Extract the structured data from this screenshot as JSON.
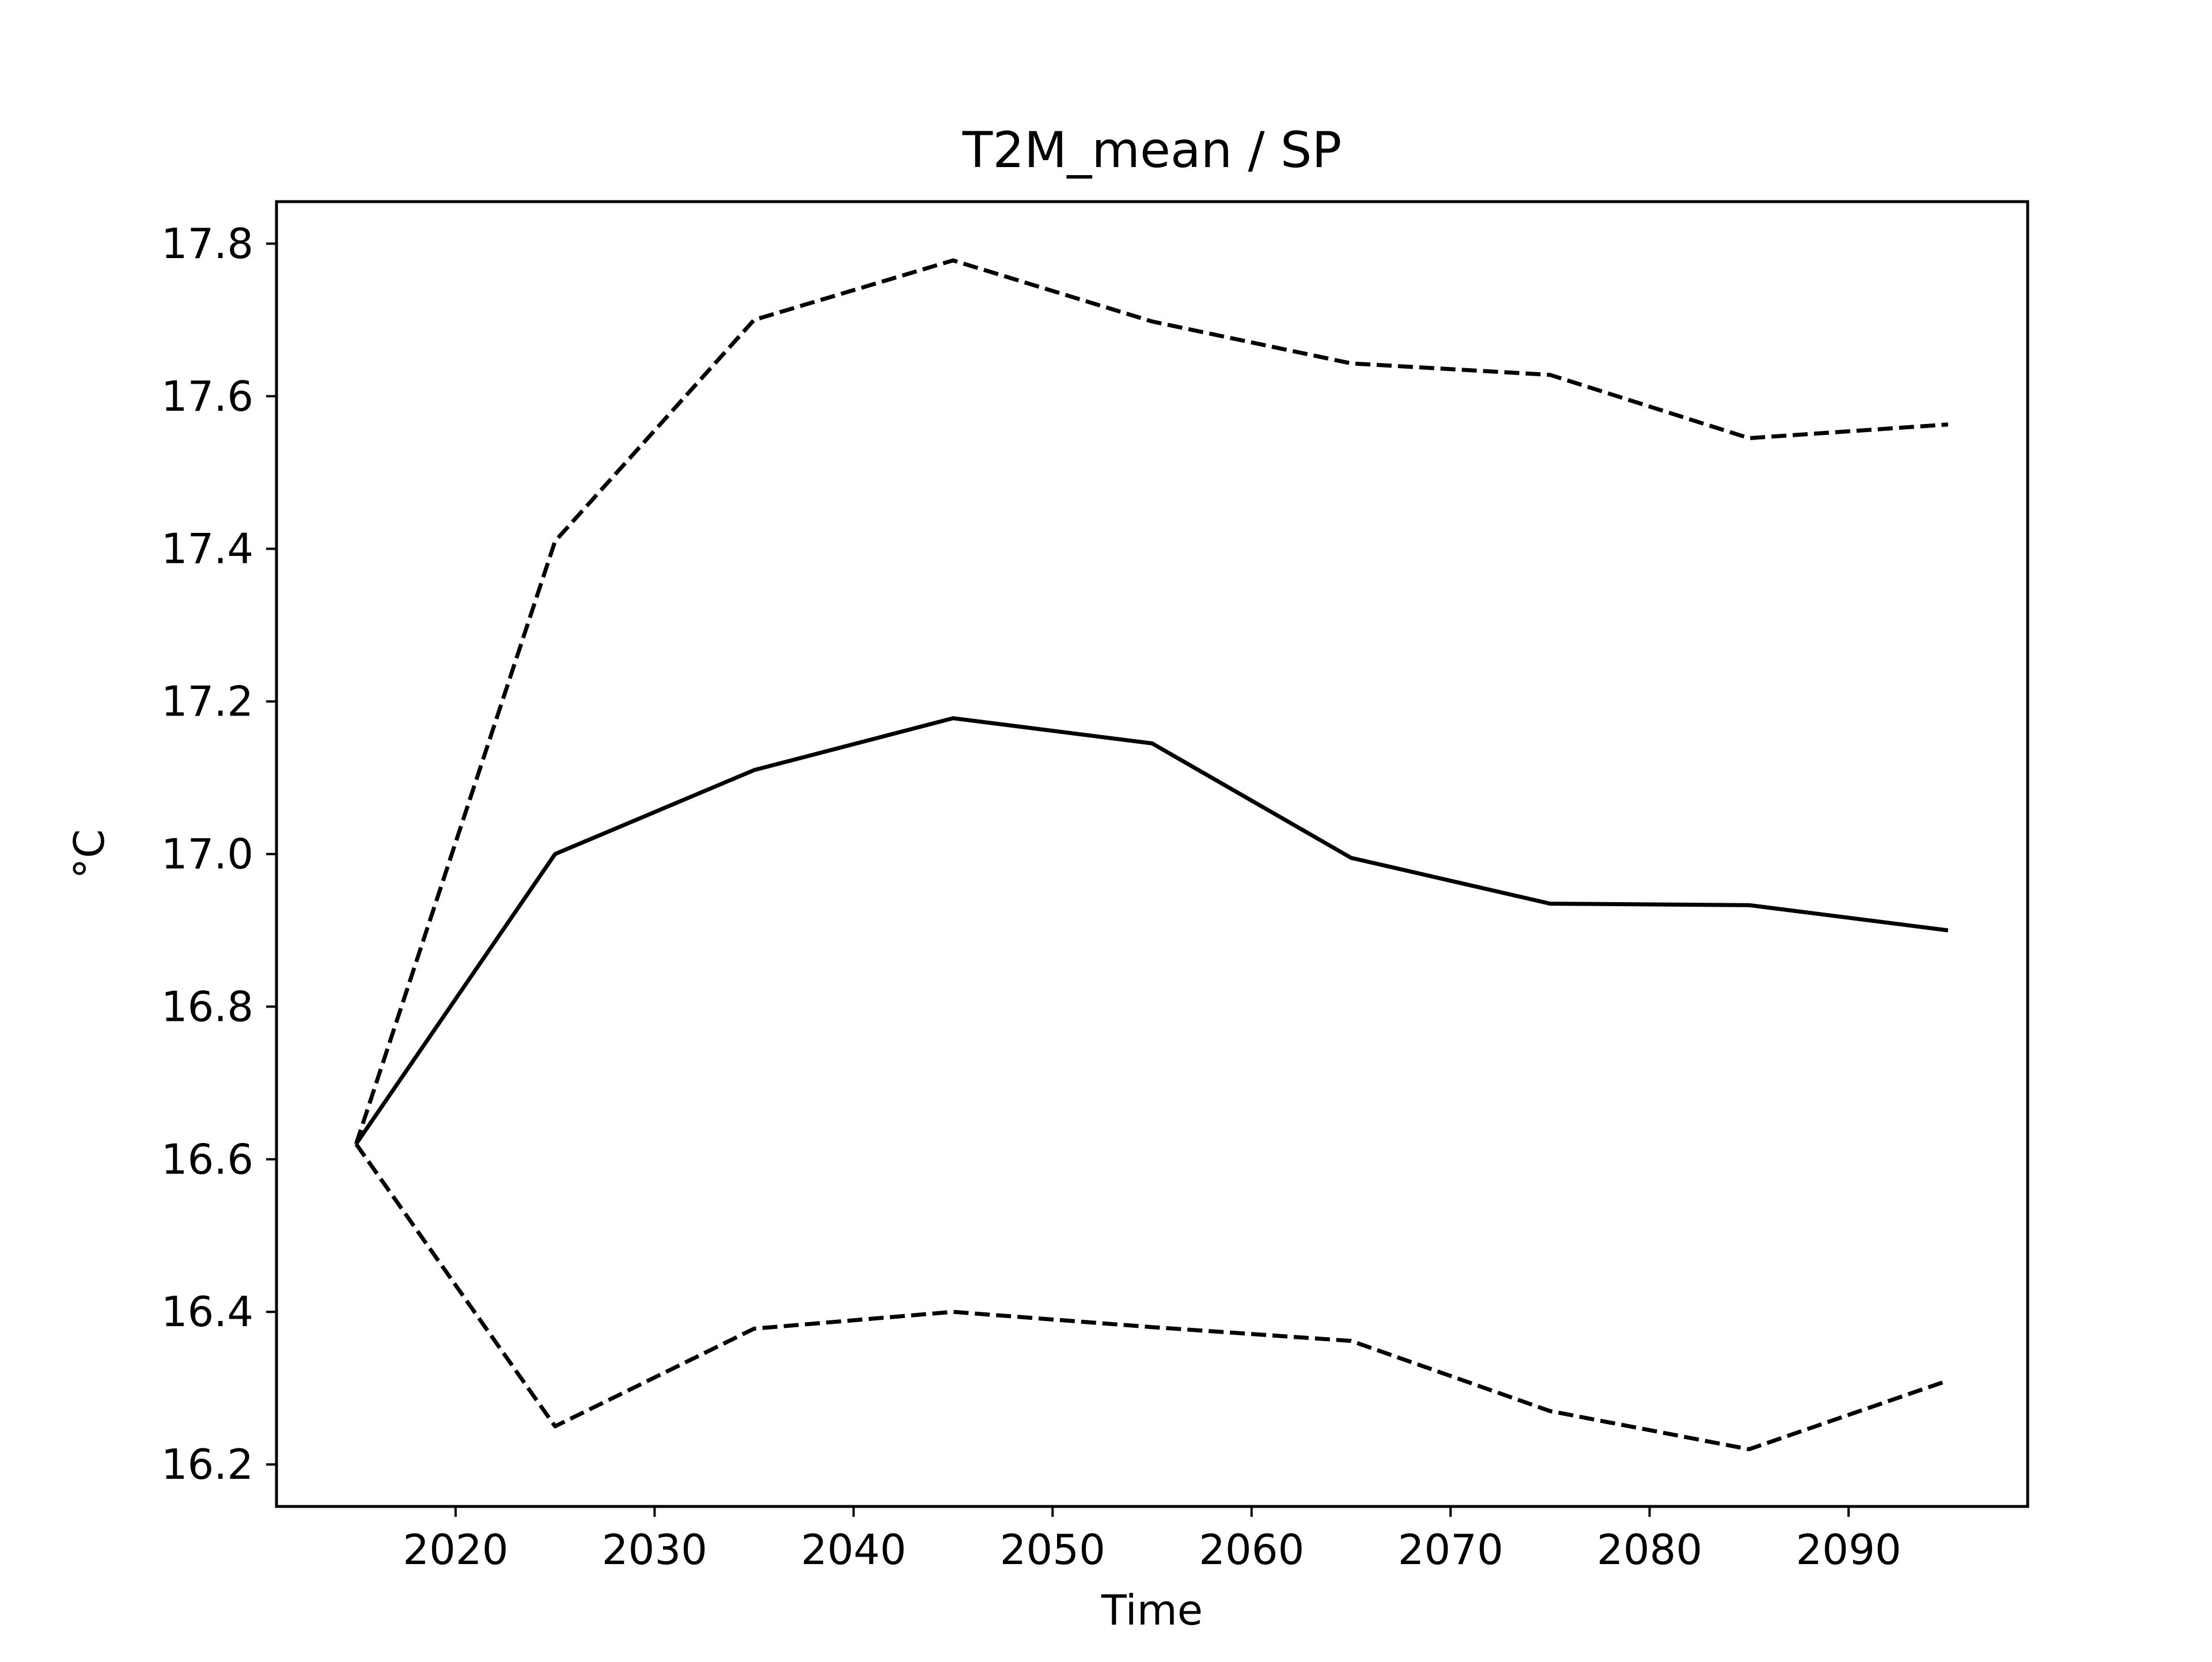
{
  "chart_data": {
    "type": "line",
    "title": "T2M_mean / SP",
    "xlabel": "Time",
    "ylabel": "°C",
    "xlim": [
      2011,
      2099
    ],
    "ylim": [
      16.145,
      17.855
    ],
    "x_ticks": [
      2020,
      2030,
      2040,
      2050,
      2060,
      2070,
      2080,
      2090
    ],
    "y_ticks": [
      16.2,
      16.4,
      16.6,
      16.8,
      17.0,
      17.2,
      17.4,
      17.6,
      17.8
    ],
    "y_tick_labels": [
      "16.2",
      "16.4",
      "16.6",
      "16.8",
      "17.0",
      "17.2",
      "17.4",
      "17.6",
      "17.8"
    ],
    "grid": false,
    "x": [
      2015,
      2025,
      2035,
      2045,
      2055,
      2065,
      2075,
      2085,
      2095
    ],
    "series": [
      {
        "style": "solid",
        "color": "#000000",
        "values": [
          16.62,
          17.0,
          17.11,
          17.178,
          17.145,
          16.995,
          16.935,
          16.933,
          16.9
        ]
      },
      {
        "style": "dashed",
        "color": "#000000",
        "values": [
          16.62,
          17.41,
          17.7,
          17.778,
          17.698,
          17.643,
          17.628,
          17.545,
          17.563
        ]
      },
      {
        "style": "dashed",
        "color": "#000000",
        "values": [
          16.62,
          16.25,
          16.378,
          16.4,
          16.38,
          16.362,
          16.27,
          16.22,
          16.31
        ]
      }
    ]
  }
}
